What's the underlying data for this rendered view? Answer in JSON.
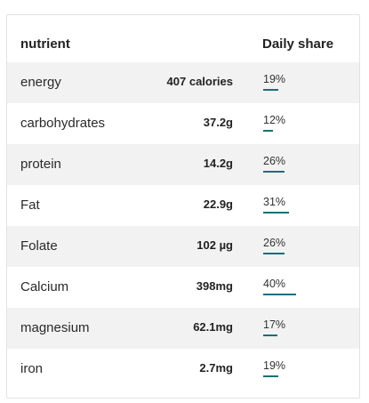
{
  "header": {
    "nutrient_label": "nutrient",
    "share_label": "Daily share"
  },
  "accent_color": "#1a6e78",
  "rows": [
    {
      "name": "energy",
      "amount": "407 calories",
      "percent": "19%",
      "share": 0.19
    },
    {
      "name": "carbohydrates",
      "amount": "37.2g",
      "percent": "12%",
      "share": 0.12
    },
    {
      "name": "protein",
      "amount": "14.2g",
      "percent": "26%",
      "share": 0.26
    },
    {
      "name": "Fat",
      "amount": "22.9g",
      "percent": "31%",
      "share": 0.31
    },
    {
      "name": "Folate",
      "amount": "102 µg",
      "percent": "26%",
      "share": 0.26
    },
    {
      "name": "Calcium",
      "amount": "398mg",
      "percent": "40%",
      "share": 0.4
    },
    {
      "name": "magnesium",
      "amount": "62.1mg",
      "percent": "17%",
      "share": 0.17
    },
    {
      "name": "iron",
      "amount": "2.7mg",
      "percent": "19%",
      "share": 0.19
    }
  ]
}
